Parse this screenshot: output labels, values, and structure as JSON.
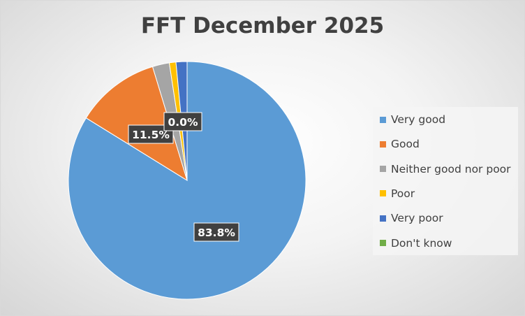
{
  "chart_data": {
    "type": "pie",
    "title": "FFT December 2025",
    "categories": [
      "Very good",
      "Good",
      "Neither good nor poor",
      "Poor",
      "Very poor",
      "Don't know"
    ],
    "values": [
      83.8,
      11.5,
      2.3,
      0.9,
      1.5,
      0.0
    ],
    "colors": [
      "#5b9bd5",
      "#ed7d31",
      "#a5a5a5",
      "#ffc000",
      "#4472c4",
      "#70ad47"
    ],
    "data_labels": [
      "83.8%",
      "11.5%",
      "",
      "",
      "",
      "0.0%"
    ],
    "legend_position": "right"
  }
}
